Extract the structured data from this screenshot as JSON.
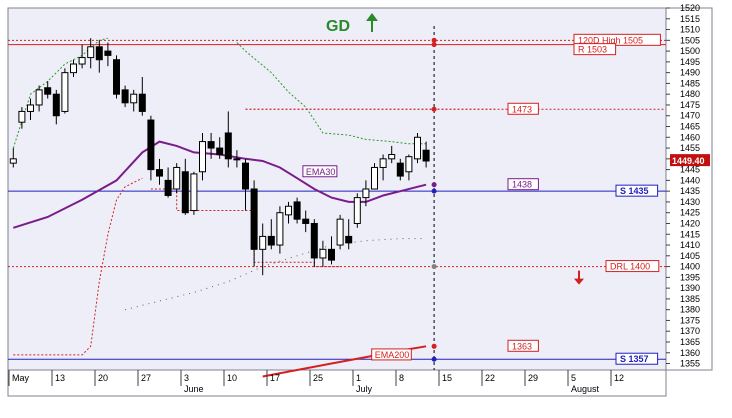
{
  "colors": {
    "plot_bg": "#eeeef8",
    "axis_bg": "#ffffff",
    "candle": "#000000",
    "ema30": "#7a1c8a",
    "ema200": "#d42020",
    "support": "#2020c0",
    "resistance": "#d42020",
    "stop_up": "#2a9a2a",
    "stop_down": "#d42020",
    "accent_green": "#2a8a2a",
    "price_tag": "#c01010",
    "dots": "#606060"
  },
  "signal": {
    "text": "GD",
    "icon": "up-arrow-icon"
  },
  "chart_data": {
    "type": "candlestick",
    "y_axis": {
      "min": 1352,
      "max": 1520,
      "step": 5,
      "ticks": [
        1355,
        1360,
        1365,
        1370,
        1375,
        1380,
        1385,
        1390,
        1395,
        1400,
        1405,
        1410,
        1415,
        1420,
        1425,
        1430,
        1435,
        1440,
        1445,
        1450,
        1455,
        1460,
        1465,
        1470,
        1475,
        1480,
        1485,
        1490,
        1495,
        1500,
        1505,
        1510,
        1515,
        1520
      ],
      "position": "right"
    },
    "x_axis": {
      "labels": [
        {
          "text": "May",
          "i": 0,
          "month": true
        },
        {
          "text": "13",
          "i": 5
        },
        {
          "text": "20",
          "i": 10
        },
        {
          "text": "27",
          "i": 15
        },
        {
          "text": "3",
          "i": 20,
          "sub": "June"
        },
        {
          "text": "10",
          "i": 25
        },
        {
          "text": "17",
          "i": 30
        },
        {
          "text": "25",
          "i": 35
        },
        {
          "text": "1",
          "i": 40,
          "sub": "July"
        },
        {
          "text": "8",
          "i": 45
        },
        {
          "text": "15",
          "i": 50
        },
        {
          "text": "22",
          "i": 55
        },
        {
          "text": "29",
          "i": 60
        },
        {
          "text": "5",
          "i": 65,
          "sub": "August"
        },
        {
          "text": "12",
          "i": 70
        }
      ],
      "total_slots": 74
    },
    "candles": [
      {
        "o": 1448,
        "h": 1455,
        "l": 1446,
        "c": 1450
      },
      {
        "o": 1467,
        "h": 1474,
        "l": 1464,
        "c": 1472
      },
      {
        "o": 1472,
        "h": 1478,
        "l": 1468,
        "c": 1475
      },
      {
        "o": 1475,
        "h": 1484,
        "l": 1472,
        "c": 1482
      },
      {
        "o": 1483,
        "h": 1486,
        "l": 1478,
        "c": 1480
      },
      {
        "o": 1480,
        "h": 1482,
        "l": 1466,
        "c": 1470
      },
      {
        "o": 1472,
        "h": 1492,
        "l": 1471,
        "c": 1490
      },
      {
        "o": 1490,
        "h": 1496,
        "l": 1488,
        "c": 1494
      },
      {
        "o": 1494,
        "h": 1503,
        "l": 1492,
        "c": 1497
      },
      {
        "o": 1497,
        "h": 1506,
        "l": 1492,
        "c": 1502
      },
      {
        "o": 1502,
        "h": 1505,
        "l": 1490,
        "c": 1496
      },
      {
        "o": 1500,
        "h": 1504,
        "l": 1493,
        "c": 1498
      },
      {
        "o": 1496,
        "h": 1498,
        "l": 1478,
        "c": 1480
      },
      {
        "o": 1482,
        "h": 1484,
        "l": 1474,
        "c": 1476
      },
      {
        "o": 1476,
        "h": 1482,
        "l": 1472,
        "c": 1480
      },
      {
        "o": 1480,
        "h": 1488,
        "l": 1470,
        "c": 1472
      },
      {
        "o": 1468,
        "h": 1470,
        "l": 1440,
        "c": 1445
      },
      {
        "o": 1445,
        "h": 1450,
        "l": 1438,
        "c": 1442
      },
      {
        "o": 1440,
        "h": 1446,
        "l": 1432,
        "c": 1433
      },
      {
        "o": 1436,
        "h": 1448,
        "l": 1434,
        "c": 1446
      },
      {
        "o": 1444,
        "h": 1450,
        "l": 1424,
        "c": 1425
      },
      {
        "o": 1426,
        "h": 1444,
        "l": 1424,
        "c": 1443
      },
      {
        "o": 1444,
        "h": 1462,
        "l": 1440,
        "c": 1458
      },
      {
        "o": 1458,
        "h": 1462,
        "l": 1450,
        "c": 1455
      },
      {
        "o": 1455,
        "h": 1460,
        "l": 1450,
        "c": 1452
      },
      {
        "o": 1462,
        "h": 1472,
        "l": 1446,
        "c": 1450
      },
      {
        "o": 1450,
        "h": 1454,
        "l": 1446,
        "c": 1450
      },
      {
        "o": 1448,
        "h": 1450,
        "l": 1426,
        "c": 1436
      },
      {
        "o": 1436,
        "h": 1440,
        "l": 1400,
        "c": 1408
      },
      {
        "o": 1408,
        "h": 1420,
        "l": 1396,
        "c": 1414
      },
      {
        "o": 1414,
        "h": 1422,
        "l": 1408,
        "c": 1410
      },
      {
        "o": 1410,
        "h": 1428,
        "l": 1406,
        "c": 1425
      },
      {
        "o": 1424,
        "h": 1430,
        "l": 1420,
        "c": 1428
      },
      {
        "o": 1430,
        "h": 1432,
        "l": 1420,
        "c": 1422
      },
      {
        "o": 1422,
        "h": 1426,
        "l": 1416,
        "c": 1420
      },
      {
        "o": 1420,
        "h": 1422,
        "l": 1400,
        "c": 1404
      },
      {
        "o": 1404,
        "h": 1412,
        "l": 1400,
        "c": 1408
      },
      {
        "o": 1408,
        "h": 1414,
        "l": 1401,
        "c": 1403
      },
      {
        "o": 1410,
        "h": 1424,
        "l": 1408,
        "c": 1422
      },
      {
        "o": 1414,
        "h": 1422,
        "l": 1408,
        "c": 1411
      },
      {
        "o": 1420,
        "h": 1434,
        "l": 1418,
        "c": 1432
      },
      {
        "o": 1432,
        "h": 1440,
        "l": 1428,
        "c": 1436
      },
      {
        "o": 1436,
        "h": 1448,
        "l": 1436,
        "c": 1446
      },
      {
        "o": 1446,
        "h": 1452,
        "l": 1440,
        "c": 1450
      },
      {
        "o": 1450,
        "h": 1456,
        "l": 1448,
        "c": 1452
      },
      {
        "o": 1448,
        "h": 1450,
        "l": 1440,
        "c": 1442
      },
      {
        "o": 1444,
        "h": 1452,
        "l": 1440,
        "c": 1451
      },
      {
        "o": 1450,
        "h": 1462,
        "l": 1448,
        "c": 1460
      },
      {
        "o": 1454,
        "h": 1458,
        "l": 1446,
        "c": 1449
      }
    ],
    "ema30": [
      [
        0,
        1418
      ],
      [
        4,
        1423
      ],
      [
        8,
        1431
      ],
      [
        12,
        1440
      ],
      [
        15,
        1453
      ],
      [
        17,
        1458
      ],
      [
        19,
        1456
      ],
      [
        21,
        1453
      ],
      [
        24,
        1452
      ],
      [
        27,
        1450
      ],
      [
        29,
        1449
      ],
      [
        31,
        1446
      ],
      [
        33,
        1441
      ],
      [
        35,
        1436
      ],
      [
        37,
        1432
      ],
      [
        39,
        1430
      ],
      [
        41,
        1430
      ],
      [
        43,
        1433
      ],
      [
        45,
        1435
      ],
      [
        47,
        1437
      ],
      [
        48,
        1438
      ]
    ],
    "ema200": [
      [
        29,
        1349
      ],
      [
        33,
        1352
      ],
      [
        37,
        1355
      ],
      [
        41,
        1358
      ],
      [
        45,
        1361
      ],
      [
        48,
        1363
      ]
    ],
    "stop_up": [
      [
        0,
        1455
      ],
      [
        2,
        1480
      ],
      [
        4,
        1486
      ],
      [
        6,
        1494
      ],
      [
        8,
        1498
      ],
      [
        10,
        1505
      ],
      [
        11,
        1506
      ]
    ],
    "stop_up_2": [
      [
        26,
        1504
      ],
      [
        27,
        1500
      ],
      [
        30,
        1490
      ],
      [
        32,
        1481
      ],
      [
        34,
        1474
      ],
      [
        35,
        1468
      ],
      [
        36,
        1462
      ],
      [
        39,
        1461
      ],
      [
        41,
        1459
      ],
      [
        44,
        1458
      ],
      [
        46,
        1457
      ],
      [
        48,
        1457
      ]
    ],
    "stop_down": [
      [
        0,
        1359
      ],
      [
        4,
        1359
      ],
      [
        8,
        1359
      ],
      [
        9,
        1363
      ],
      [
        10,
        1393
      ],
      [
        11,
        1415
      ],
      [
        12,
        1431
      ],
      [
        13,
        1437
      ],
      [
        15,
        1441
      ]
    ],
    "stop_dotted": [
      [
        13,
        1380
      ],
      [
        17,
        1384
      ],
      [
        21,
        1388
      ],
      [
        25,
        1393
      ],
      [
        29,
        1400
      ],
      [
        33,
        1405
      ],
      [
        37,
        1410
      ],
      [
        41,
        1412
      ],
      [
        45,
        1413
      ],
      [
        48,
        1413
      ]
    ],
    "step_lines": [
      {
        "points": [
          [
            16,
            1436
          ],
          [
            19,
            1436
          ],
          [
            19,
            1426
          ],
          [
            28,
            1426
          ],
          [
            28,
            1402
          ],
          [
            35,
            1402
          ],
          [
            35,
            1400
          ],
          [
            38,
            1400
          ]
        ],
        "color": "#d42020"
      },
      {
        "points": [
          [
            27,
            1473
          ],
          [
            56,
            1473
          ]
        ],
        "color": "#d42020"
      }
    ],
    "levels": [
      {
        "label": "120D High 1505",
        "value": 1505,
        "kind": "resistance",
        "style": "dotted"
      },
      {
        "label": "R 1503",
        "value": 1503,
        "kind": "resistance",
        "style": "solid"
      },
      {
        "label": "1473",
        "value": 1473,
        "kind": "resistance",
        "style": "dotted"
      },
      {
        "label": "1438",
        "value": 1438,
        "kind": "ema30",
        "style": "none"
      },
      {
        "label": "S 1435",
        "value": 1435,
        "kind": "support",
        "style": "solid"
      },
      {
        "label": "DRL 1400",
        "value": 1400,
        "kind": "resistance",
        "style": "dotted"
      },
      {
        "label": "1363",
        "value": 1363,
        "kind": "resistance",
        "style": "none"
      },
      {
        "label": "S 1357",
        "value": 1357,
        "kind": "support",
        "style": "solid"
      }
    ],
    "series_labels": [
      {
        "text": "EMA30",
        "at": [
          36,
          1444
        ]
      },
      {
        "text": "EMA200",
        "at": [
          44,
          1359
        ]
      }
    ],
    "current_price": "1449.40",
    "marker_dots": [
      {
        "value": 1505,
        "color": "#d42020"
      },
      {
        "value": 1503,
        "color": "#d42020"
      },
      {
        "value": 1473,
        "color": "#d42020"
      },
      {
        "value": 1438,
        "color": "#7a1c8a"
      },
      {
        "value": 1435,
        "color": "#2020c0"
      },
      {
        "value": 1400,
        "color": "#808080"
      },
      {
        "value": 1363,
        "color": "#d42020"
      },
      {
        "value": 1357,
        "color": "#2020c0"
      }
    ],
    "drl_arrow": {
      "icon": "down-arrow-icon",
      "color": "#d42020"
    },
    "grid": false,
    "legend": "none"
  }
}
